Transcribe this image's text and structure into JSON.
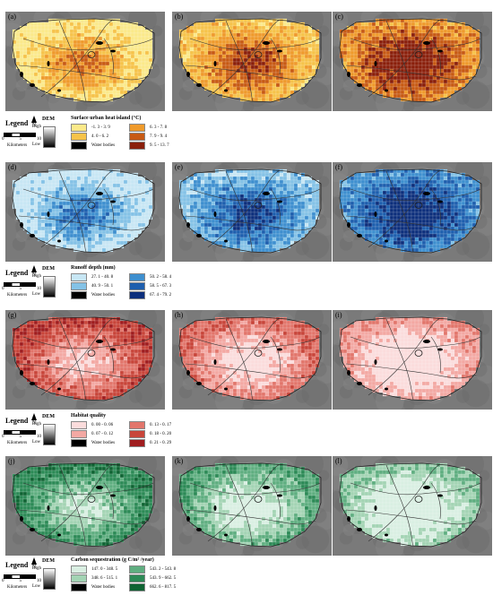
{
  "figure": {
    "panel_labels": [
      "(a)",
      "(b)",
      "(c)",
      "(d)",
      "(e)",
      "(f)",
      "(g)",
      "(h)",
      "(i)",
      "(j)",
      "(k)",
      "(l)"
    ]
  },
  "rows": [
    {
      "key": "heat",
      "legend": {
        "legend_word": "Legend",
        "north": "N",
        "scale_ticks": [
          "0",
          "5",
          "10"
        ],
        "scale_unit": "Kilometers",
        "dem_title": "DEM",
        "dem_high": "High",
        "dem_low": "Low",
        "title": "Surface urban heat island (°C)",
        "classes": [
          {
            "label": "-1. 3 - 3. 9",
            "color": "#fbe98a"
          },
          {
            "label": "4. 0 - 6. 2",
            "color": "#f6c34a"
          },
          {
            "label": "Water bodies",
            "color": "#000000"
          },
          {
            "label": "6. 3 - 7. 8",
            "color": "#ef9a2c"
          },
          {
            "label": "7. 9 - 9. 4",
            "color": "#c75a14"
          },
          {
            "label": "9. 5 - 13. 7",
            "color": "#8a1f0b"
          }
        ]
      }
    },
    {
      "key": "runoff",
      "legend": {
        "legend_word": "Legend",
        "north": "N",
        "scale_ticks": [
          "0",
          "5",
          "10"
        ],
        "scale_unit": "Kilometers",
        "dem_title": "DEM",
        "dem_high": "High",
        "dem_low": "Low",
        "title": "Runoff depth (mm)",
        "classes": [
          {
            "label": "27. 1 - 40. 8",
            "color": "#c7e6f4"
          },
          {
            "label": "40. 9 - 50. 1",
            "color": "#84c2e6"
          },
          {
            "label": "Water bodies",
            "color": "#000000"
          },
          {
            "label": "50. 2 - 58. 4",
            "color": "#3e8fcf"
          },
          {
            "label": "58. 5 - 67. 3",
            "color": "#1e5fae"
          },
          {
            "label": "67. 4 - 79. 2",
            "color": "#0d2f7c"
          }
        ]
      }
    },
    {
      "key": "habitat",
      "legend": {
        "legend_word": "Legend",
        "north": "N",
        "scale_ticks": [
          "0",
          "5",
          "10"
        ],
        "scale_unit": "Kilometers",
        "dem_title": "DEM",
        "dem_high": "High",
        "dem_low": "Low",
        "title": "Habitat quality",
        "classes": [
          {
            "label": "0. 00 - 0. 06",
            "color": "#fbdcdc"
          },
          {
            "label": "0. 07 - 0. 12",
            "color": "#f3a8a3"
          },
          {
            "label": "Water bodies",
            "color": "#000000"
          },
          {
            "label": "0. 13 - 0. 17",
            "color": "#e2756b"
          },
          {
            "label": "0. 18 - 0. 20",
            "color": "#c8453a"
          },
          {
            "label": "0. 21 - 0. 29",
            "color": "#a01d1f"
          }
        ]
      }
    },
    {
      "key": "carbon",
      "legend": {
        "legend_word": "Legend",
        "north": "N",
        "scale_ticks": [
          "0",
          "5",
          "10"
        ],
        "scale_unit": "Kilometers",
        "dem_title": "DEM",
        "dem_high": "High",
        "dem_low": "Low",
        "title": "Carbon sequestration (g C/m² /year)",
        "classes": [
          {
            "label": "147. 0 - 348. 5",
            "color": "#d9efe2"
          },
          {
            "label": "348. 6 - 515. 1",
            "color": "#a3d4b4"
          },
          {
            "label": "Water bodies",
            "color": "#000000"
          },
          {
            "label": "543. 2 - 543. 8",
            "color": "#5fae80"
          },
          {
            "label": "543. 9 - 662. 5",
            "color": "#2c8a56"
          },
          {
            "label": "662. 6 - 817. 5",
            "color": "#0f6433"
          }
        ]
      }
    }
  ]
}
